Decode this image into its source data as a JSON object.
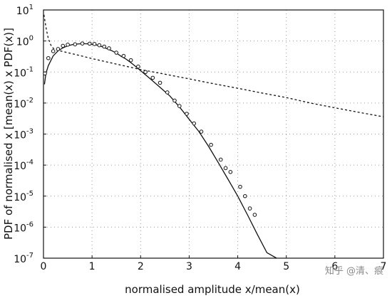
{
  "chart_data": {
    "type": "line",
    "xlabel": "normalised amplitude x/mean(x)",
    "ylabel": "PDF of normalised x [mean(x) x PDF(x)]",
    "xlim": [
      0,
      7
    ],
    "ylim_log10": [
      -7,
      1
    ],
    "y_scale": "log",
    "x_ticks": [
      0,
      1,
      2,
      3,
      4,
      5,
      6,
      7
    ],
    "x_tick_labels": [
      "0",
      "1",
      "2",
      "3",
      "4",
      "5",
      "6",
      "7"
    ],
    "y_tick_exponents": [
      1,
      0,
      -1,
      -2,
      -3,
      -4,
      -5,
      -6,
      -7
    ],
    "y_tick_base": "10",
    "y_tick_exp_labels": [
      "1",
      "0",
      "-1",
      "-2",
      "-3",
      "-4",
      "-5",
      "-6",
      "-7"
    ],
    "grid": true,
    "series": [
      {
        "style": "solid",
        "points": [
          [
            0.02,
            0.04
          ],
          [
            0.05,
            0.09
          ],
          [
            0.1,
            0.16
          ],
          [
            0.2,
            0.33
          ],
          [
            0.3,
            0.48
          ],
          [
            0.4,
            0.6
          ],
          [
            0.5,
            0.7
          ],
          [
            0.6,
            0.77
          ],
          [
            0.7,
            0.8
          ],
          [
            0.8,
            0.82
          ],
          [
            0.9,
            0.81
          ],
          [
            1.0,
            0.78
          ],
          [
            1.1,
            0.74
          ],
          [
            1.2,
            0.66
          ],
          [
            1.3,
            0.57
          ],
          [
            1.4,
            0.49
          ],
          [
            1.5,
            0.41
          ],
          [
            1.6,
            0.32
          ],
          [
            1.7,
            0.26
          ],
          [
            1.8,
            0.2
          ],
          [
            1.9,
            0.15
          ],
          [
            2.0,
            0.11
          ],
          [
            2.2,
            0.06
          ],
          [
            2.4,
            0.032
          ],
          [
            2.6,
            0.017
          ],
          [
            2.8,
            0.0075
          ],
          [
            3.0,
            0.003
          ],
          [
            3.2,
            0.0012
          ],
          [
            3.4,
            0.0004
          ],
          [
            3.6,
            0.00012
          ],
          [
            3.8,
            3.5e-05
          ],
          [
            4.0,
            1e-05
          ],
          [
            4.2,
            2.5e-06
          ],
          [
            4.4,
            6e-07
          ],
          [
            4.6,
            1.5e-07
          ],
          [
            4.8,
            1e-07
          ]
        ]
      },
      {
        "style": "dashed",
        "points": [
          [
            0.01,
            7.0
          ],
          [
            0.03,
            4.5
          ],
          [
            0.06,
            2.3
          ],
          [
            0.1,
            1.2
          ],
          [
            0.15,
            0.75
          ],
          [
            0.2,
            0.58
          ],
          [
            0.3,
            0.5
          ],
          [
            0.5,
            0.42
          ],
          [
            0.75,
            0.34
          ],
          [
            1.0,
            0.27
          ],
          [
            1.5,
            0.18
          ],
          [
            2.0,
            0.12
          ],
          [
            2.5,
            0.085
          ],
          [
            3.0,
            0.06
          ],
          [
            3.5,
            0.042
          ],
          [
            4.0,
            0.03
          ],
          [
            4.5,
            0.021
          ],
          [
            5.0,
            0.015
          ],
          [
            5.5,
            0.01
          ],
          [
            6.0,
            0.007
          ],
          [
            6.5,
            0.005
          ],
          [
            7.0,
            0.0036
          ]
        ]
      },
      {
        "style": "markers",
        "points": [
          [
            0.03,
            0.09
          ],
          [
            0.1,
            0.28
          ],
          [
            0.2,
            0.47
          ],
          [
            0.3,
            0.55
          ],
          [
            0.4,
            0.7
          ],
          [
            0.5,
            0.76
          ],
          [
            0.65,
            0.78
          ],
          [
            0.8,
            0.83
          ],
          [
            0.95,
            0.82
          ],
          [
            1.05,
            0.8
          ],
          [
            1.15,
            0.73
          ],
          [
            1.25,
            0.66
          ],
          [
            1.35,
            0.58
          ],
          [
            1.5,
            0.42
          ],
          [
            1.65,
            0.33
          ],
          [
            1.8,
            0.24
          ],
          [
            1.95,
            0.15
          ],
          [
            2.1,
            0.1
          ],
          [
            2.25,
            0.065
          ],
          [
            2.4,
            0.045
          ],
          [
            2.55,
            0.022
          ],
          [
            2.7,
            0.012
          ],
          [
            2.8,
            0.008
          ],
          [
            2.95,
            0.0045
          ],
          [
            3.1,
            0.0022
          ],
          [
            3.25,
            0.0012
          ],
          [
            3.45,
            0.00045
          ],
          [
            3.65,
            0.00015
          ],
          [
            3.75,
            8e-05
          ],
          [
            3.85,
            6e-05
          ],
          [
            4.05,
            2e-05
          ],
          [
            4.15,
            1e-05
          ],
          [
            4.25,
            4e-06
          ],
          [
            4.35,
            2.5e-06
          ]
        ]
      }
    ],
    "watermark": "知乎 @清、痕"
  }
}
